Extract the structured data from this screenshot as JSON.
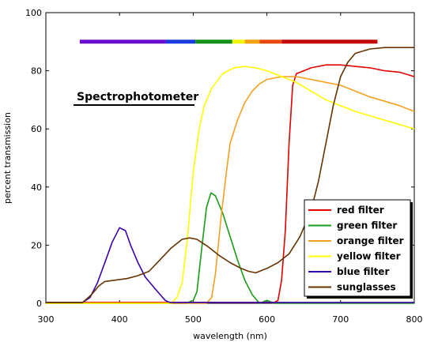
{
  "chart_data": {
    "type": "line",
    "xlabel": "wavelength (nm)",
    "ylabel": "percent transmission",
    "xlim": [
      300,
      800
    ],
    "ylim": [
      0,
      100
    ],
    "xticks": [
      300,
      400,
      500,
      600,
      700,
      800
    ],
    "yticks": [
      0,
      20,
      40,
      60,
      80,
      100
    ],
    "grid": false,
    "legend_position": "bottom-right",
    "annotation": "Spectrophotometer",
    "spectrum_bar": {
      "y": 90,
      "segments": [
        {
          "from": 346,
          "to": 463,
          "color": "#6a0ccf"
        },
        {
          "from": 463,
          "to": 503,
          "color": "#1a3de0"
        },
        {
          "from": 503,
          "to": 553,
          "color": "#13901a"
        },
        {
          "from": 553,
          "to": 570,
          "color": "#f2f20a"
        },
        {
          "from": 570,
          "to": 590,
          "color": "#f5a00a"
        },
        {
          "from": 590,
          "to": 620,
          "color": "#e84a0c"
        },
        {
          "from": 620,
          "to": 750,
          "color": "#c20808"
        }
      ]
    },
    "series": [
      {
        "name": "red filter",
        "color": "#e00000",
        "points": [
          [
            300,
            0.3
          ],
          [
            610,
            0.3
          ],
          [
            615,
            1
          ],
          [
            620,
            8
          ],
          [
            625,
            25
          ],
          [
            630,
            55
          ],
          [
            635,
            75
          ],
          [
            640,
            79
          ],
          [
            660,
            81
          ],
          [
            680,
            82
          ],
          [
            700,
            82
          ],
          [
            720,
            81.5
          ],
          [
            740,
            81
          ],
          [
            760,
            80
          ],
          [
            780,
            79.5
          ],
          [
            800,
            78
          ]
        ]
      },
      {
        "name": "green filter",
        "color": "#1a9a1a",
        "points": [
          [
            300,
            0
          ],
          [
            490,
            0
          ],
          [
            500,
            1
          ],
          [
            505,
            4
          ],
          [
            512,
            20
          ],
          [
            518,
            33
          ],
          [
            524,
            38
          ],
          [
            530,
            37
          ],
          [
            540,
            31
          ],
          [
            550,
            23
          ],
          [
            560,
            15
          ],
          [
            570,
            8
          ],
          [
            580,
            3
          ],
          [
            590,
            0
          ],
          [
            600,
            1
          ],
          [
            610,
            0
          ],
          [
            800,
            0
          ]
        ]
      },
      {
        "name": "orange filter",
        "color": "#f4a020",
        "points": [
          [
            300,
            0
          ],
          [
            518,
            0
          ],
          [
            525,
            2
          ],
          [
            530,
            10
          ],
          [
            538,
            30
          ],
          [
            545,
            45
          ],
          [
            550,
            55
          ],
          [
            560,
            63
          ],
          [
            570,
            69
          ],
          [
            580,
            73
          ],
          [
            590,
            75.5
          ],
          [
            600,
            77
          ],
          [
            620,
            78
          ],
          [
            640,
            78
          ],
          [
            660,
            77
          ],
          [
            680,
            76
          ],
          [
            700,
            75
          ],
          [
            720,
            73
          ],
          [
            740,
            71
          ],
          [
            760,
            69.5
          ],
          [
            780,
            68
          ],
          [
            800,
            66
          ]
        ]
      },
      {
        "name": "yellow filter",
        "color": "#ffff00",
        "points": [
          [
            300,
            0
          ],
          [
            470,
            0
          ],
          [
            478,
            2
          ],
          [
            485,
            7
          ],
          [
            492,
            22
          ],
          [
            500,
            45
          ],
          [
            508,
            60
          ],
          [
            515,
            68
          ],
          [
            525,
            74
          ],
          [
            540,
            79
          ],
          [
            555,
            81
          ],
          [
            570,
            81.5
          ],
          [
            585,
            81
          ],
          [
            600,
            80
          ],
          [
            620,
            78
          ],
          [
            640,
            76
          ],
          [
            660,
            73
          ],
          [
            680,
            70
          ],
          [
            700,
            68
          ],
          [
            720,
            66
          ],
          [
            740,
            64.5
          ],
          [
            760,
            63
          ],
          [
            780,
            61.5
          ],
          [
            800,
            60
          ]
        ]
      },
      {
        "name": "blue filter",
        "color": "#3a00aa",
        "points": [
          [
            300,
            0.3
          ],
          [
            350,
            0.3
          ],
          [
            360,
            2
          ],
          [
            370,
            7
          ],
          [
            380,
            14
          ],
          [
            390,
            21
          ],
          [
            400,
            26
          ],
          [
            408,
            25
          ],
          [
            415,
            20
          ],
          [
            425,
            14
          ],
          [
            435,
            9
          ],
          [
            445,
            6
          ],
          [
            455,
            3
          ],
          [
            462,
            1
          ],
          [
            468,
            0.3
          ],
          [
            800,
            0.3
          ]
        ]
      },
      {
        "name": "sunglasses",
        "color": "#663300",
        "points": [
          [
            300,
            0.3
          ],
          [
            350,
            0.3
          ],
          [
            362,
            3
          ],
          [
            372,
            6
          ],
          [
            380,
            7.5
          ],
          [
            395,
            8
          ],
          [
            410,
            8.5
          ],
          [
            425,
            9.5
          ],
          [
            440,
            11
          ],
          [
            455,
            15
          ],
          [
            470,
            19
          ],
          [
            485,
            22
          ],
          [
            495,
            22.5
          ],
          [
            505,
            22
          ],
          [
            520,
            19.5
          ],
          [
            535,
            16.5
          ],
          [
            550,
            14
          ],
          [
            565,
            12
          ],
          [
            575,
            11
          ],
          [
            585,
            10.5
          ],
          [
            600,
            12
          ],
          [
            615,
            14
          ],
          [
            630,
            17
          ],
          [
            645,
            23
          ],
          [
            660,
            32
          ],
          [
            670,
            42
          ],
          [
            680,
            55
          ],
          [
            690,
            68
          ],
          [
            700,
            78
          ],
          [
            710,
            83
          ],
          [
            720,
            86
          ],
          [
            740,
            87.5
          ],
          [
            760,
            88
          ],
          [
            780,
            88
          ],
          [
            800,
            88
          ]
        ]
      }
    ]
  }
}
